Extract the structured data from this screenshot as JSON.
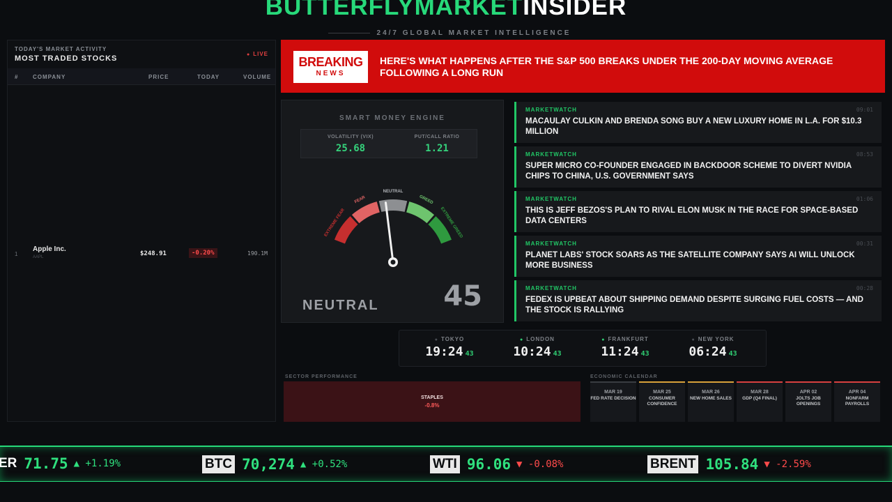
{
  "brand": {
    "green": "BUTTERFLYMARKET",
    "white": "INSIDER",
    "tagline": "24/7 GLOBAL MARKET INTELLIGENCE"
  },
  "left_panel": {
    "subtitle": "TODAY'S MARKET ACTIVITY",
    "title": "MOST TRADED STOCKS",
    "live": "LIVE",
    "columns": [
      "#",
      "COMPANY",
      "PRICE",
      "TODAY",
      "VOLUME"
    ],
    "rows": [
      {
        "rank": "1",
        "company": "Apple Inc.",
        "ticker": "AAPL",
        "price": "$248.91",
        "today": "-0.20%",
        "volume": "190.1M"
      }
    ]
  },
  "breaking": {
    "badge_top": "BREAKING",
    "badge_bottom": "NEWS",
    "headline": "HERE'S WHAT HAPPENS AFTER THE S&P 500 BREAKS UNDER THE 200-DAY MOVING AVERAGE FOLLOWING A LONG RUN"
  },
  "engine": {
    "title": "SMART MONEY ENGINE",
    "vix_label": "VOLATILITY (VIX)",
    "vix_value": "25.68",
    "pcr_label": "PUT/CALL RATIO",
    "pcr_value": "1.21",
    "zones": [
      "EXTREME FEAR",
      "FEAR",
      "NEUTRAL",
      "GREED",
      "EXTREME GREED"
    ],
    "sentiment": "NEUTRAL",
    "score": "45",
    "score_value": 45
  },
  "news": [
    {
      "source": "MARKETWATCH",
      "time": "09:01",
      "headline": "MACAULAY CULKIN AND BRENDA SONG BUY A NEW LUXURY HOME IN L.A. FOR $10.3 MILLION"
    },
    {
      "source": "MARKETWATCH",
      "time": "08:53",
      "headline": "SUPER MICRO CO-FOUNDER ENGAGED IN BACKDOOR SCHEME TO DIVERT NVIDIA CHIPS TO CHINA, U.S. GOVERNMENT SAYS"
    },
    {
      "source": "MARKETWATCH",
      "time": "01:06",
      "headline": "THIS IS JEFF BEZOS'S PLAN TO RIVAL ELON MUSK IN THE RACE FOR SPACE-BASED DATA CENTERS"
    },
    {
      "source": "MARKETWATCH",
      "time": "00:31",
      "headline": "PLANET LABS' STOCK SOARS AS THE SATELLITE COMPANY SAYS AI WILL UNLOCK MORE BUSINESS"
    },
    {
      "source": "MARKETWATCH",
      "time": "00:28",
      "headline": "FEDEX IS UPBEAT ABOUT SHIPPING DEMAND DESPITE SURGING FUEL COSTS — AND THE STOCK IS RALLYING"
    }
  ],
  "clocks": [
    {
      "city": "TOKYO",
      "time": "19:24",
      "sec": "43",
      "open": false
    },
    {
      "city": "LONDON",
      "time": "10:24",
      "sec": "43",
      "open": true
    },
    {
      "city": "FRANKFURT",
      "time": "11:24",
      "sec": "43",
      "open": true
    },
    {
      "city": "NEW YORK",
      "time": "06:24",
      "sec": "43",
      "open": false
    }
  ],
  "sector": {
    "label": "SECTOR PERFORMANCE",
    "name": "STAPLES",
    "value": "-0.8%"
  },
  "calendar": {
    "label": "ECONOMIC CALENDAR",
    "events": [
      {
        "date": "MAR 19",
        "event": "FED RATE DECISION",
        "color": "#3a3d42"
      },
      {
        "date": "MAR 25",
        "event": "CONSUMER CONFIDENCE",
        "color": "#d9a13a"
      },
      {
        "date": "MAR 26",
        "event": "NEW HOME SALES",
        "color": "#d9a13a"
      },
      {
        "date": "MAR 28",
        "event": "GDP (Q4 FINAL)",
        "color": "#d84040"
      },
      {
        "date": "APR 02",
        "event": "JOLTS JOB OPENINGS",
        "color": "#d84040"
      },
      {
        "date": "APR 04",
        "event": "NONFARM PAYROLLS",
        "color": "#d84040"
      }
    ]
  },
  "ticker": [
    {
      "symbol": "ER",
      "price": "71.75",
      "change": "▲ +1.19%",
      "dir": "up"
    },
    {
      "symbol": "BTC",
      "price": "70,274",
      "change": "▲ +0.52%",
      "dir": "up"
    },
    {
      "symbol": "WTI",
      "price": "96.06",
      "change": "▼ -0.08%",
      "dir": "dn"
    },
    {
      "symbol": "BRENT",
      "price": "105.84",
      "change": "▼ -2.59%",
      "dir": "dn"
    }
  ],
  "colors": {
    "accent_green": "#27d97a",
    "breaking_red": "#d10c0c",
    "negative": "#ff4b4b"
  },
  "icons": {
    "live": "red-dot-icon",
    "gauge": "semicircle-gauge-icon"
  }
}
